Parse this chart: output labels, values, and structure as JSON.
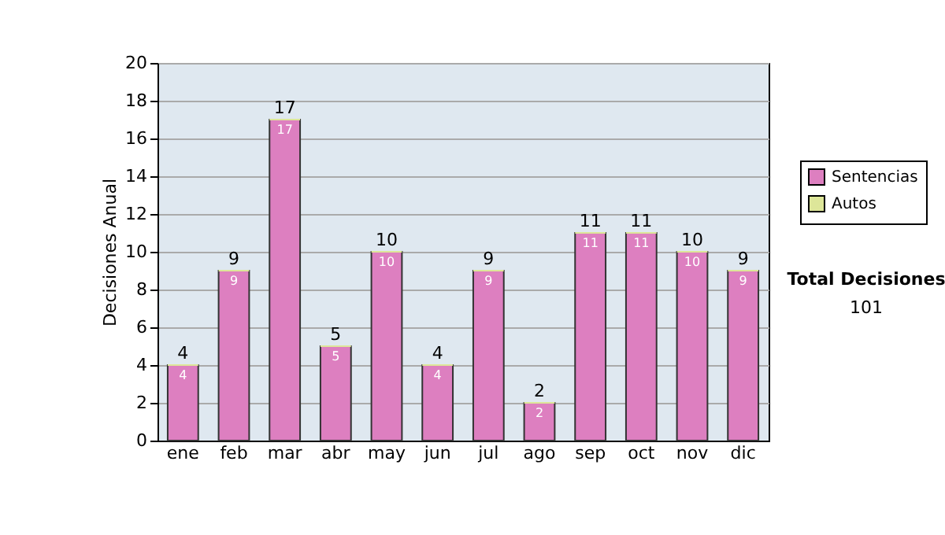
{
  "chart_data": {
    "type": "bar",
    "ylabel": "Decisiones Anual",
    "categories": [
      "ene",
      "feb",
      "mar",
      "abr",
      "may",
      "jun",
      "jul",
      "ago",
      "sep",
      "oct",
      "nov",
      "dic"
    ],
    "series": [
      {
        "name": "Sentencias",
        "color": "#dd7fc0",
        "values": [
          4,
          9,
          17,
          5,
          10,
          4,
          9,
          2,
          11,
          11,
          10,
          9
        ],
        "value_labels": [
          "4",
          "9",
          "17",
          "5",
          "10",
          "4",
          "9",
          "2",
          "11",
          "11",
          "10",
          "9"
        ]
      },
      {
        "name": "Autos",
        "color": "#dde699",
        "values": [
          0,
          0,
          0,
          0,
          0,
          0,
          0,
          0,
          0,
          0,
          0,
          0
        ],
        "value_labels": [
          null,
          null,
          null,
          null,
          null,
          null,
          null,
          null,
          null,
          null,
          null,
          null
        ]
      }
    ],
    "stacked": true,
    "totals": [
      "4",
      "9",
      "17",
      "5",
      "10",
      "4",
      "9",
      "2",
      "11",
      "11",
      "10",
      "9"
    ],
    "ylim": [
      0,
      20
    ],
    "yticks": [
      0,
      2,
      4,
      6,
      8,
      10,
      12,
      14,
      16,
      18,
      20
    ],
    "grid": true,
    "legend": "right",
    "annotations": [
      "Total Decisiones",
      "101"
    ]
  }
}
